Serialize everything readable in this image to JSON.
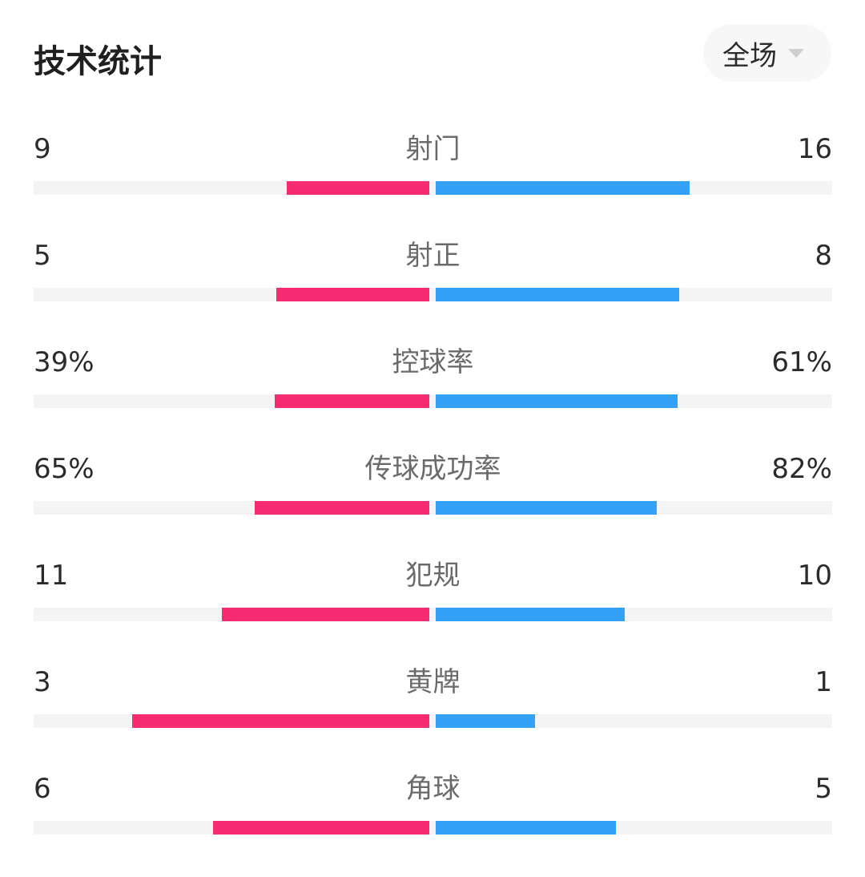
{
  "header": {
    "title": "技术统计"
  },
  "period_selector": {
    "selected": "全场"
  },
  "colors": {
    "home": "#f62b72",
    "away": "#33a2f6",
    "track": "#f4f4f4"
  },
  "stats": [
    {
      "label": "射门",
      "home": "9",
      "away": "16",
      "home_ratio": 0.36,
      "away_ratio": 0.64
    },
    {
      "label": "射正",
      "home": "5",
      "away": "8",
      "home_ratio": 0.385,
      "away_ratio": 0.615
    },
    {
      "label": "控球率",
      "home": "39%",
      "away": "61%",
      "home_ratio": 0.39,
      "away_ratio": 0.61
    },
    {
      "label": "传球成功率",
      "home": "65%",
      "away": "82%",
      "home_ratio": 0.44,
      "away_ratio": 0.558
    },
    {
      "label": "犯规",
      "home": "11",
      "away": "10",
      "home_ratio": 0.524,
      "away_ratio": 0.476
    },
    {
      "label": "黄牌",
      "home": "3",
      "away": "1",
      "home_ratio": 0.75,
      "away_ratio": 0.25
    },
    {
      "label": "角球",
      "home": "6",
      "away": "5",
      "home_ratio": 0.545,
      "away_ratio": 0.455
    }
  ]
}
